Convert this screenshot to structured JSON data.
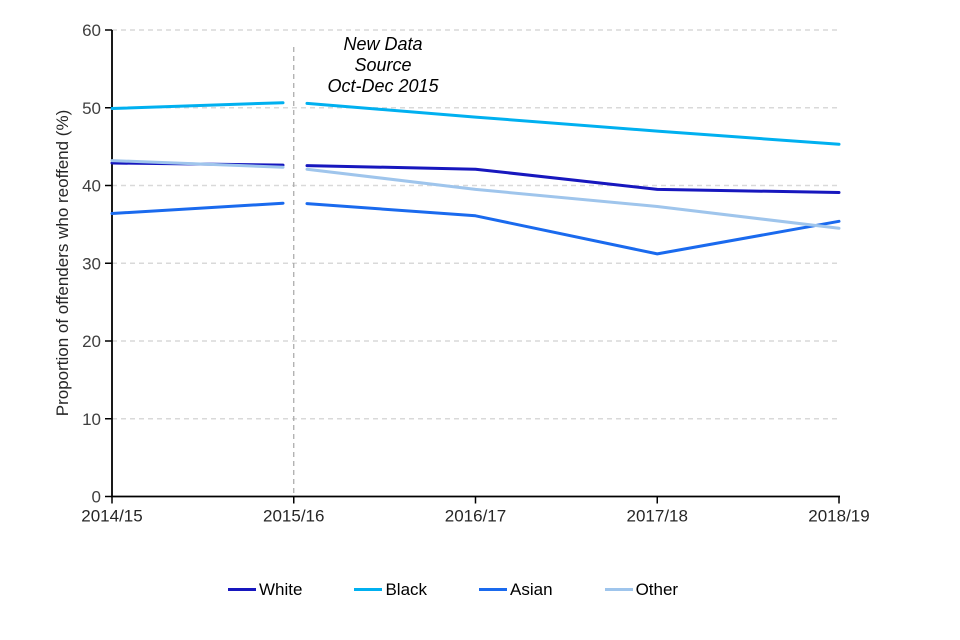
{
  "chart_data": {
    "type": "line",
    "title": "",
    "xlabel": "",
    "ylabel": "Proportion of offenders who reoffend (%)",
    "categories": [
      "2014/15",
      "2015/16",
      "2016/17",
      "2017/18",
      "2018/19"
    ],
    "series": [
      {
        "name": "White",
        "color": "#1717BE",
        "values": [
          42.9,
          42.6,
          42.1,
          39.5,
          39.1
        ]
      },
      {
        "name": "Black",
        "color": "#00B0F0",
        "values": [
          49.9,
          50.7,
          48.8,
          47.0,
          45.3
        ]
      },
      {
        "name": "Asian",
        "color": "#1A6AEE",
        "values": [
          36.4,
          37.8,
          36.1,
          31.2,
          35.4
        ]
      },
      {
        "name": "Other",
        "color": "#9FC5EC",
        "values": [
          43.2,
          42.3,
          39.5,
          37.3,
          34.5
        ]
      }
    ],
    "ylim": [
      0,
      60
    ],
    "yticks": [
      0,
      10,
      20,
      30,
      40,
      50,
      60
    ],
    "grid": "horizontal-dashed",
    "legend_position": "bottom",
    "annotation": {
      "lines": [
        "New Data",
        "Source",
        "Oct-Dec 2015"
      ],
      "at_category": "2015/16"
    },
    "series_break": {
      "at_category": "2015/16",
      "style": "vertical-dashed-line-with-gap"
    }
  },
  "colors": {
    "gridline": "#D9D9D9",
    "break_line": "#A6A6A6",
    "axis": "#000000"
  }
}
